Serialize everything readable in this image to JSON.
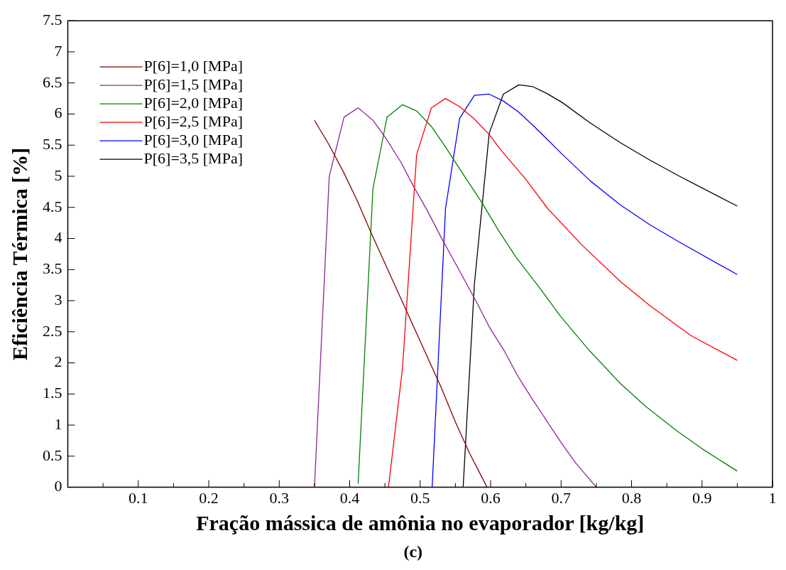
{
  "chart_data": {
    "type": "line",
    "xlabel": "Fração mássica de amônia no evaporador [kg/kg]",
    "ylabel": "Eficiência Térmica [%]",
    "annotations": [
      "(c)"
    ],
    "xlim": [
      0,
      1
    ],
    "xticks": [
      {
        "value": 0.05,
        "label": null
      },
      0.1,
      {
        "value": 0.15,
        "label": null
      },
      0.2,
      {
        "value": 0.25,
        "label": null
      },
      0.3,
      {
        "value": 0.35,
        "label": null
      },
      0.4,
      {
        "value": 0.45,
        "label": null
      },
      0.5,
      {
        "value": 0.55,
        "label": null
      },
      0.6,
      {
        "value": 0.65,
        "label": null
      },
      0.7,
      {
        "value": 0.75,
        "label": null
      },
      0.8,
      {
        "value": 0.85,
        "label": null
      },
      0.9,
      {
        "value": 0.95,
        "label": null
      },
      1
    ],
    "ylim": [
      0,
      7.5
    ],
    "yticks": [
      0,
      0.5,
      1,
      1.5,
      2,
      2.5,
      3,
      3.5,
      4,
      4.5,
      5,
      5.5,
      6,
      6.5,
      7,
      7.5
    ],
    "grid": false,
    "legend": "top left",
    "marker": "none",
    "line_style": "solid",
    "series": [
      {
        "name": "P[6]=1,0 [MPa]",
        "color": "#800000",
        "x": [
          0.35,
          0.371,
          0.392,
          0.411,
          0.43,
          0.45,
          0.47,
          0.49,
          0.51,
          0.53,
          0.55,
          0.57,
          0.595
        ],
        "values": [
          5.9,
          5.5,
          5.05,
          4.6,
          4.1,
          3.6,
          3.1,
          2.6,
          2.1,
          1.6,
          1.05,
          0.55,
          0
        ]
      },
      {
        "name": "P[6]=1,5 [MPa]",
        "color": "#8b2596",
        "x": [
          0.35,
          0.371,
          0.392,
          0.412,
          0.433,
          0.452,
          0.473,
          0.49,
          0.51,
          0.532,
          0.55,
          0.578,
          0.598,
          0.619,
          0.639,
          0.659,
          0.68,
          0.7,
          0.72,
          0.75
        ],
        "values": [
          0,
          5.0,
          5.95,
          6.1,
          5.9,
          5.6,
          5.22,
          4.85,
          4.45,
          3.97,
          3.6,
          3.02,
          2.58,
          2.2,
          1.78,
          1.42,
          1.06,
          0.72,
          0.4,
          0
        ]
      },
      {
        "name": "P[6]=2,0 [MPa]",
        "color": "#008000",
        "x": [
          0.412,
          0.433,
          0.453,
          0.475,
          0.495,
          0.516,
          0.536,
          0.56,
          0.588,
          0.61,
          0.636,
          0.67,
          0.699,
          0.74,
          0.784,
          0.82,
          0.864,
          0.9,
          0.95
        ],
        "values": [
          0.06,
          4.8,
          5.95,
          6.15,
          6.05,
          5.8,
          5.47,
          5.05,
          4.57,
          4.15,
          3.7,
          3.2,
          2.75,
          2.2,
          1.67,
          1.3,
          0.91,
          0.62,
          0.26
        ]
      },
      {
        "name": "P[6]=2,5 [MPa]",
        "color": "#ff0000",
        "x": [
          0.455,
          0.475,
          0.495,
          0.516,
          0.536,
          0.556,
          0.577,
          0.598,
          0.614,
          0.65,
          0.681,
          0.73,
          0.784,
          0.826,
          0.884,
          0.95
        ],
        "values": [
          0,
          1.92,
          5.35,
          6.1,
          6.25,
          6.12,
          5.92,
          5.67,
          5.43,
          4.95,
          4.48,
          3.89,
          3.31,
          2.92,
          2.44,
          2.04
        ]
      },
      {
        "name": "P[6]=3,0 [MPa]",
        "color": "#0000ff",
        "x": [
          0.517,
          0.536,
          0.556,
          0.577,
          0.598,
          0.618,
          0.639,
          0.66,
          0.702,
          0.741,
          0.784,
          0.826,
          0.868,
          0.95
        ],
        "values": [
          0,
          4.48,
          5.93,
          6.3,
          6.32,
          6.21,
          6.04,
          5.82,
          5.35,
          4.93,
          4.54,
          4.22,
          3.94,
          3.42
        ]
      },
      {
        "name": "P[6]=3,5 [MPa]",
        "color": "#000000",
        "x": [
          0.561,
          0.577,
          0.598,
          0.618,
          0.64,
          0.66,
          0.68,
          0.701,
          0.741,
          0.784,
          0.826,
          0.868,
          0.95
        ],
        "values": [
          0,
          3.27,
          5.69,
          6.32,
          6.47,
          6.44,
          6.33,
          6.19,
          5.86,
          5.54,
          5.26,
          5.0,
          4.52
        ]
      }
    ]
  }
}
